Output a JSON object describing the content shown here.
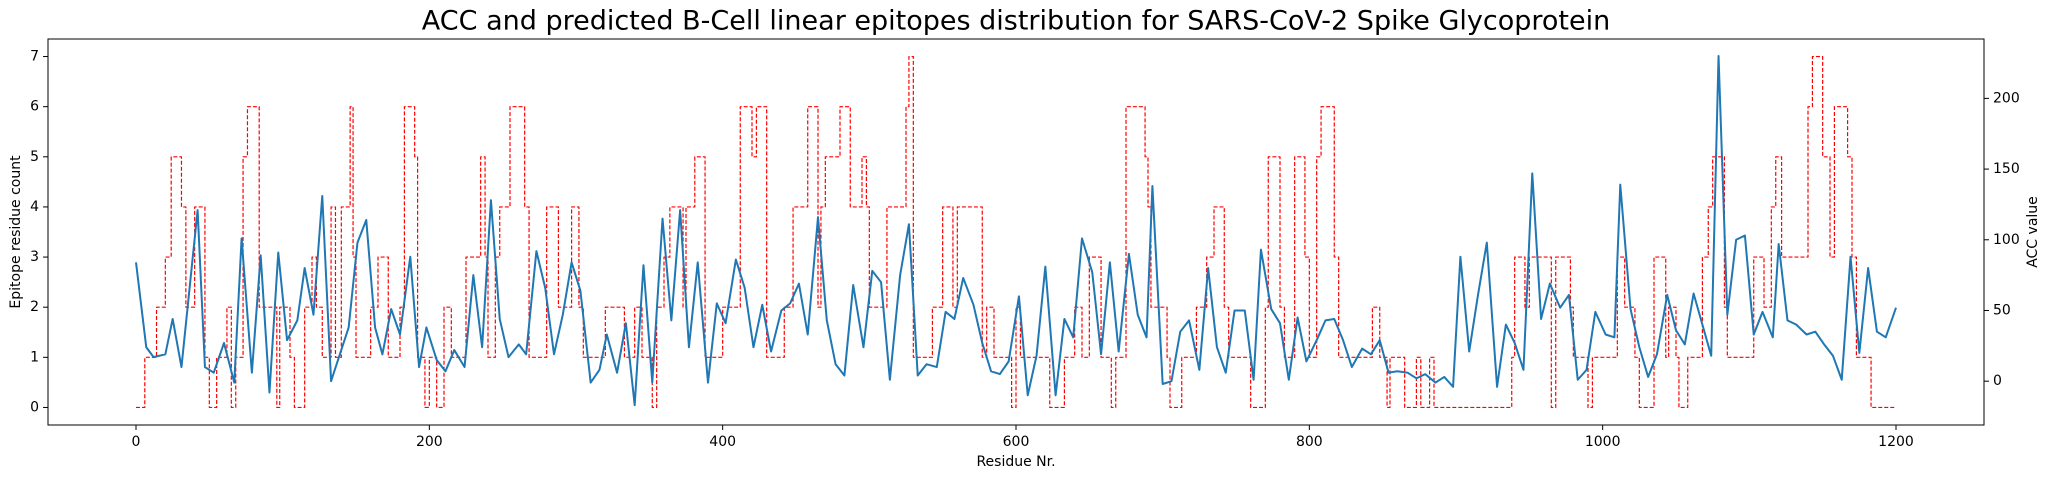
{
  "chart_data": {
    "type": "line",
    "title": "ACC and predicted B-Cell linear epitopes distribution for SARS-CoV-2 Spike Glycoprotein",
    "xlabel": "Residue Nr.",
    "ylabel": "Epitope residue count",
    "ylabel_color": "#ff0000",
    "y2label": "ACC value",
    "y2label_color": "#0000ff",
    "xlim": [
      -60,
      1260
    ],
    "xticks": [
      0,
      200,
      400,
      600,
      800,
      1000,
      1200
    ],
    "ylim": [
      -0.35,
      7.35
    ],
    "yticks": [
      0,
      1,
      2,
      3,
      4,
      5,
      6,
      7
    ],
    "y2lim": [
      -31,
      242
    ],
    "y2ticks": [
      0,
      50,
      100,
      150,
      200
    ],
    "series": [
      {
        "color": "#ff0000",
        "dashed": true,
        "step": "post",
        "x": [
          0,
          6,
          14,
          20,
          24,
          31,
          34,
          40,
          47,
          50,
          55,
          62,
          65,
          68,
          73,
          76,
          84,
          96,
          98,
          105,
          108,
          115,
          120,
          123,
          127,
          133,
          136,
          140,
          146,
          148,
          150,
          160,
          165,
          172,
          180,
          183,
          190,
          192,
          197,
          200,
          205,
          210,
          215,
          225,
          235,
          238,
          240,
          245,
          248,
          255,
          265,
          268,
          280,
          288,
          297,
          302,
          305,
          320,
          333,
          340,
          345,
          352,
          355,
          360,
          364,
          373,
          375,
          381,
          388,
          400,
          412,
          420,
          423,
          430,
          442,
          448,
          458,
          465,
          467,
          470,
          480,
          487,
          495,
          498,
          500,
          512,
          525,
          527,
          530,
          543,
          550,
          557,
          560,
          577,
          580,
          585,
          597,
          600,
          603,
          623,
          633,
          640,
          645,
          650,
          658,
          665,
          668,
          675,
          688,
          690,
          692,
          703,
          705,
          713,
          723,
          730,
          735,
          742,
          745,
          760,
          770,
          772,
          780,
          783,
          790,
          797,
          800,
          805,
          808,
          817,
          820,
          843,
          848,
          853,
          855,
          865,
          873,
          876,
          882,
          885,
          938,
          940,
          947,
          950,
          965,
          968,
          978,
          980,
          990,
          993,
          1010,
          1015,
          1022,
          1025,
          1035,
          1043,
          1045,
          1050,
          1052,
          1058,
          1068,
          1072,
          1075,
          1083,
          1085,
          1103,
          1110,
          1115,
          1118,
          1122,
          1140,
          1143,
          1150,
          1155,
          1158,
          1167,
          1170,
          1173,
          1183,
          1200
        ],
        "values": [
          0,
          1,
          2,
          3,
          5,
          4,
          2,
          4,
          1,
          0,
          1,
          2,
          0,
          1,
          5,
          6,
          2,
          0,
          2,
          1,
          0,
          2,
          3,
          2,
          1,
          4,
          1,
          4,
          6,
          3,
          1,
          2,
          3,
          1,
          2,
          6,
          5,
          1,
          0,
          1,
          0,
          2,
          1,
          3,
          5,
          3,
          1,
          3,
          4,
          6,
          4,
          1,
          4,
          2,
          4,
          2,
          1,
          2,
          1,
          2,
          1,
          0,
          2,
          3,
          4,
          2,
          4,
          5,
          1,
          2,
          6,
          5,
          6,
          1,
          2,
          4,
          6,
          2,
          4,
          5,
          6,
          4,
          5,
          4,
          2,
          4,
          6,
          7,
          1,
          2,
          4,
          2,
          4,
          1,
          2,
          1,
          0,
          2,
          1,
          0,
          1,
          2,
          1,
          3,
          1,
          0,
          1,
          6,
          5,
          4,
          2,
          1,
          0,
          1,
          2,
          3,
          4,
          2,
          1,
          0,
          2,
          5,
          2,
          1,
          5,
          3,
          1,
          5,
          6,
          3,
          1,
          2,
          1,
          0,
          1,
          0,
          1,
          0,
          1,
          0,
          1,
          3,
          2,
          3,
          0,
          3,
          2,
          1,
          0,
          1,
          3,
          2,
          1,
          0,
          3,
          1,
          2,
          1,
          0,
          1,
          3,
          4,
          5,
          2,
          1,
          3,
          2,
          4,
          5,
          3,
          6,
          7,
          5,
          3,
          6,
          5,
          3,
          1,
          0,
          0
        ]
      },
      {
        "color": "#1f77b4",
        "axis": "y2",
        "x": [
          0,
          7,
          12,
          20,
          25,
          31,
          42,
          47,
          53,
          60,
          67,
          72,
          79,
          85,
          91,
          97,
          103,
          110,
          115,
          121,
          127,
          133,
          139,
          145,
          151,
          157,
          163,
          168,
          174,
          180,
          187,
          193,
          198,
          205,
          211,
          217,
          224,
          230,
          236,
          242,
          248,
          254,
          261,
          266,
          273,
          279,
          285,
          291,
          297,
          303,
          310,
          316,
          321,
          328,
          334,
          340,
          346,
          352,
          359,
          365,
          371,
          377,
          383,
          390,
          396,
          402,
          409,
          415,
          421,
          427,
          433,
          440,
          446,
          452,
          458,
          465,
          471,
          477,
          483,
          489,
          496,
          502,
          508,
          514,
          521,
          527,
          533,
          539,
          546,
          552,
          558,
          564,
          571,
          577,
          583,
          589,
          595,
          602,
          608,
          614,
          620,
          627,
          633,
          639,
          645,
          652,
          658,
          664,
          670,
          677,
          683,
          689,
          693,
          700,
          706,
          712,
          718,
          725,
          731,
          737,
          743,
          749,
          756,
          762,
          767,
          774,
          780,
          786,
          792,
          798,
          805,
          811,
          817,
          823,
          829,
          836,
          842,
          848,
          854,
          860,
          867,
          873,
          879,
          886,
          892,
          898,
          903,
          909,
          915,
          921,
          928,
          934,
          940,
          946,
          952,
          958,
          964,
          971,
          977,
          983,
          989,
          995,
          1002,
          1008,
          1012,
          1019,
          1025,
          1031,
          1037,
          1044,
          1050,
          1056,
          1062,
          1068,
          1074,
          1079,
          1085,
          1091,
          1097,
          1103,
          1109,
          1116,
          1120,
          1126,
          1132,
          1139,
          1145,
          1151,
          1157,
          1163,
          1169,
          1175,
          1181,
          1187,
          1193,
          1200
        ],
        "values": [
          84,
          24,
          17,
          19,
          44,
          10,
          121,
          10,
          6,
          27,
          -1,
          101,
          6,
          89,
          -8,
          91,
          29,
          43,
          80,
          47,
          131,
          0,
          19,
          38,
          98,
          114,
          38,
          19,
          51,
          33,
          88,
          10,
          38,
          15,
          7,
          22,
          10,
          75,
          24,
          128,
          44,
          17,
          26,
          19,
          92,
          66,
          19,
          47,
          84,
          64,
          -1,
          8,
          33,
          6,
          41,
          -17,
          82,
          -1,
          115,
          43,
          121,
          24,
          84,
          -1,
          55,
          41,
          86,
          66,
          24,
          54,
          21,
          50,
          55,
          69,
          33,
          116,
          43,
          12,
          4,
          68,
          24,
          78,
          70,
          1,
          75,
          111,
          4,
          12,
          10,
          49,
          44,
          73,
          54,
          27,
          7,
          5,
          14,
          60,
          -10,
          18,
          81,
          -10,
          44,
          31,
          101,
          77,
          19,
          84,
          21,
          90,
          47,
          31,
          138,
          -2,
          0,
          35,
          43,
          8,
          80,
          24,
          6,
          50,
          50,
          1,
          93,
          51,
          41,
          1,
          45,
          14,
          29,
          43,
          44,
          29,
          10,
          23,
          19,
          29,
          6,
          7,
          6,
          2,
          5,
          -1,
          3,
          -4,
          88,
          21,
          61,
          98,
          -4,
          40,
          27,
          8,
          147,
          44,
          69,
          52,
          61,
          1,
          8,
          49,
          33,
          31,
          139,
          51,
          24,
          3,
          19,
          61,
          36,
          26,
          62,
          40,
          18,
          230,
          47,
          100,
          103,
          33,
          49,
          31,
          97,
          43,
          40,
          33,
          35,
          26,
          18,
          1,
          88,
          20,
          80,
          35,
          31,
          52
        ]
      }
    ]
  }
}
